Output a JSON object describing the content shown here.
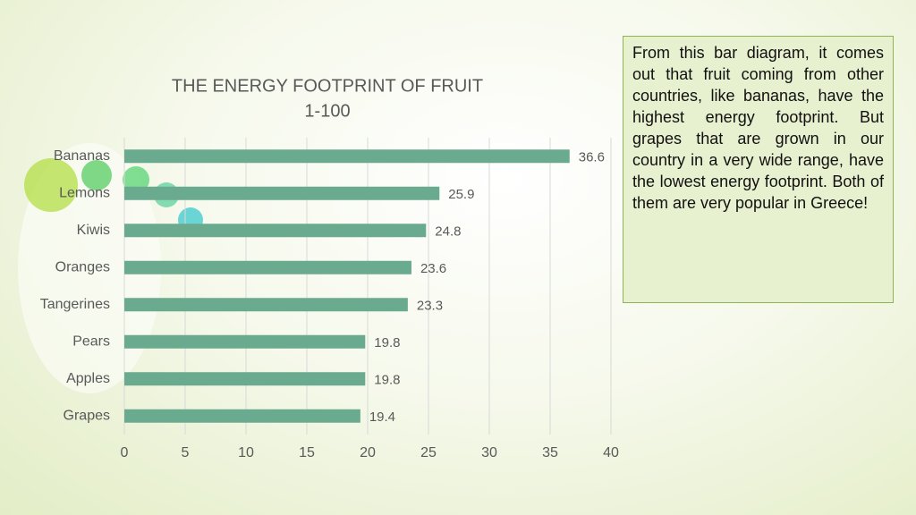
{
  "chart_data": {
    "type": "bar",
    "orientation": "horizontal",
    "title": "THE ENERGY FOOTPRINT OF FRUIT",
    "subtitle": "1-100",
    "categories": [
      "Bananas",
      "Lemons",
      "Kiwis",
      "Oranges",
      "Tangerines",
      "Pears",
      "Apples",
      "Grapes"
    ],
    "values": [
      36.6,
      25.9,
      24.8,
      23.6,
      23.3,
      19.8,
      19.8,
      19.4
    ],
    "color": "#6aaa8e",
    "xlim": [
      0,
      40
    ],
    "xticks": [
      0,
      5,
      10,
      15,
      20,
      25,
      30,
      35,
      40
    ],
    "grid": true
  },
  "text_box": "From this bar diagram, it comes out that fruit coming from other countries, like bananas, have the highest energy footprint. But grapes that are grown in our country in a very wide range, have the lowest energy footprint. Both of them are very popular in Greece!"
}
